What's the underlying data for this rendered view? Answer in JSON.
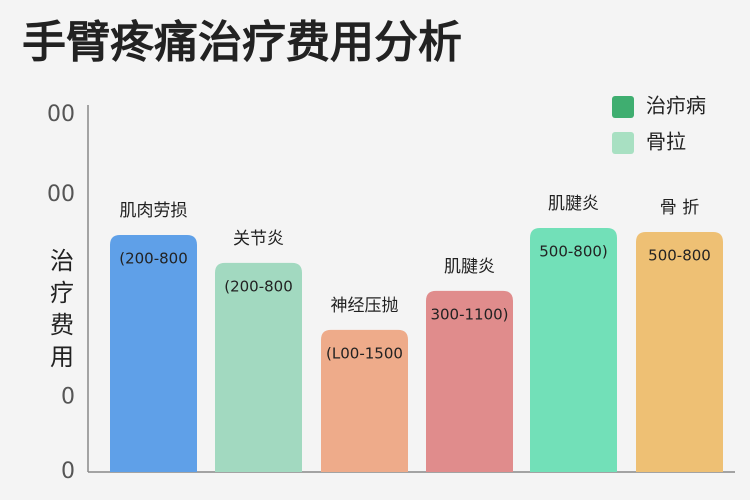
{
  "chart_data": {
    "type": "bar",
    "title": "手臂疼痛治疗费用分析",
    "y_label": "治疗费用",
    "categories": [
      "肌肉劳损",
      "关节炎",
      "神经压抛",
      "肌腱炎",
      "肌腱炎",
      "骨 折"
    ],
    "values": [
      637,
      562,
      382,
      487,
      656,
      645
    ],
    "range_labels": [
      "(200-800",
      "(200-800",
      "(L00-1500",
      "300-1100)",
      "500-800)",
      "500-800"
    ],
    "colors": [
      "#5fa0e8",
      "#a2d9c0",
      "#eeab8a",
      "#e08c8c",
      "#72e0b8",
      "#eec074"
    ],
    "legend": [
      {
        "name": "治疖病",
        "color": "#3fae70"
      },
      {
        "name": "骨拉",
        "color": "#a8e0c2"
      }
    ],
    "ylim": [
      0,
      1000
    ],
    "yticks": [
      0,
      {
        "value": 200,
        "label": "0"
      },
      {
        "value": 745,
        "label": "00"
      },
      {
        "value": 960,
        "label": "00"
      }
    ]
  }
}
